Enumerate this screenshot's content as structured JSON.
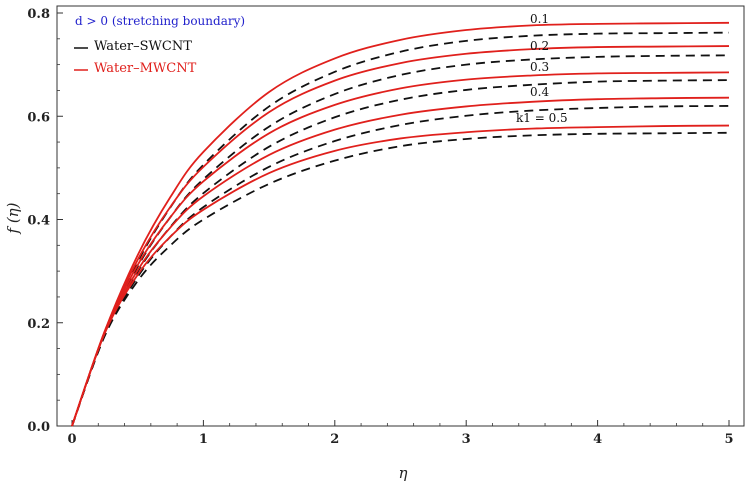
{
  "chart_data": {
    "type": "line",
    "xlabel": "η",
    "ylabel": "f (η)",
    "xlim": [
      0,
      5
    ],
    "ylim": [
      0,
      0.8
    ],
    "xticks": [
      "0",
      "1",
      "2",
      "3",
      "4",
      "5"
    ],
    "yticks": [
      "0.0",
      "0.2",
      "0.4",
      "0.6",
      "0.8"
    ],
    "grid": false,
    "legend_position": "top-left",
    "legend_note": "d > 0 (stretching boundary)",
    "legend": [
      {
        "label": "Water–SWCNT",
        "color": "#111111",
        "style": "dashed"
      },
      {
        "label": "Water–MWCNT",
        "color": "#e0201c",
        "style": "solid"
      }
    ],
    "curve_labels": [
      "0.1",
      "0.2",
      "0.3",
      "0.4",
      "k1 = 0.5"
    ],
    "series": [
      {
        "name": "Water–MWCNT, k1 = 0.1",
        "k1": 0.1,
        "fluid": "MWCNT",
        "x": [
          0,
          0.25,
          0.5,
          0.75,
          1,
          1.5,
          2,
          2.5,
          3,
          3.5,
          4,
          4.5,
          5
        ],
        "y": [
          0,
          0.184,
          0.331,
          0.444,
          0.531,
          0.647,
          0.712,
          0.748,
          0.767,
          0.776,
          0.779,
          0.78,
          0.781
        ]
      },
      {
        "name": "Water–MWCNT, k1 = 0.2",
        "k1": 0.2,
        "fluid": "MWCNT",
        "x": [
          0,
          0.25,
          0.5,
          0.75,
          1,
          1.5,
          2,
          2.5,
          3,
          3.5,
          4,
          4.5,
          5
        ],
        "y": [
          0,
          0.184,
          0.322,
          0.425,
          0.502,
          0.608,
          0.669,
          0.703,
          0.721,
          0.73,
          0.734,
          0.735,
          0.736
        ]
      },
      {
        "name": "Water–MWCNT, k1 = 0.3",
        "k1": 0.3,
        "fluid": "MWCNT",
        "x": [
          0,
          0.25,
          0.5,
          0.75,
          1,
          1.5,
          2,
          2.5,
          3,
          3.5,
          4,
          4.5,
          5
        ],
        "y": [
          0,
          0.182,
          0.312,
          0.405,
          0.474,
          0.567,
          0.622,
          0.654,
          0.671,
          0.679,
          0.683,
          0.684,
          0.685
        ]
      },
      {
        "name": "Water–MWCNT, k1 = 0.4",
        "k1": 0.4,
        "fluid": "MWCNT",
        "x": [
          0,
          0.25,
          0.5,
          0.75,
          1,
          1.5,
          2,
          2.5,
          3,
          3.5,
          4,
          4.5,
          5
        ],
        "y": [
          0,
          0.181,
          0.302,
          0.385,
          0.445,
          0.525,
          0.574,
          0.603,
          0.619,
          0.628,
          0.633,
          0.635,
          0.636
        ]
      },
      {
        "name": "Water–MWCNT, k1 = 0.5",
        "k1": 0.5,
        "fluid": "MWCNT",
        "x": [
          0,
          0.25,
          0.5,
          0.75,
          1,
          1.5,
          2,
          2.5,
          3,
          3.5,
          4,
          4.5,
          5
        ],
        "y": [
          0,
          0.18,
          0.293,
          0.367,
          0.419,
          0.49,
          0.533,
          0.557,
          0.569,
          0.576,
          0.579,
          0.581,
          0.582
        ]
      },
      {
        "name": "Water–SWCNT, k1 = 0.1",
        "k1": 0.1,
        "fluid": "SWCNT",
        "x": [
          0,
          0.25,
          0.5,
          0.75,
          1,
          1.5,
          2,
          2.5,
          3,
          3.5,
          4,
          4.5,
          5
        ],
        "y": [
          0,
          0.179,
          0.318,
          0.424,
          0.506,
          0.619,
          0.686,
          0.725,
          0.746,
          0.756,
          0.76,
          0.761,
          0.762
        ]
      },
      {
        "name": "Water–SWCNT, k1 = 0.2",
        "k1": 0.2,
        "fluid": "SWCNT",
        "x": [
          0,
          0.25,
          0.5,
          0.75,
          1,
          1.5,
          2,
          2.5,
          3,
          3.5,
          4,
          4.5,
          5
        ],
        "y": [
          0,
          0.179,
          0.309,
          0.405,
          0.478,
          0.58,
          0.643,
          0.68,
          0.7,
          0.71,
          0.715,
          0.717,
          0.718
        ]
      },
      {
        "name": "Water–SWCNT, k1 = 0.3",
        "k1": 0.3,
        "fluid": "SWCNT",
        "x": [
          0,
          0.25,
          0.5,
          0.75,
          1,
          1.5,
          2,
          2.5,
          3,
          3.5,
          4,
          4.5,
          5
        ],
        "y": [
          0,
          0.177,
          0.299,
          0.386,
          0.451,
          0.541,
          0.598,
          0.632,
          0.651,
          0.661,
          0.667,
          0.669,
          0.67
        ]
      },
      {
        "name": "Water–SWCNT, k1 = 0.4",
        "k1": 0.4,
        "fluid": "SWCNT",
        "x": [
          0,
          0.25,
          0.5,
          0.75,
          1,
          1.5,
          2,
          2.5,
          3,
          3.5,
          4,
          4.5,
          5
        ],
        "y": [
          0,
          0.176,
          0.289,
          0.367,
          0.424,
          0.502,
          0.552,
          0.583,
          0.601,
          0.611,
          0.616,
          0.619,
          0.62
        ]
      },
      {
        "name": "Water–SWCNT, k1 = 0.5",
        "k1": 0.5,
        "fluid": "SWCNT",
        "x": [
          0,
          0.25,
          0.5,
          0.75,
          1,
          1.5,
          2,
          2.5,
          3,
          3.5,
          4,
          4.5,
          5
        ],
        "y": [
          0,
          0.175,
          0.281,
          0.35,
          0.4,
          0.469,
          0.514,
          0.542,
          0.556,
          0.563,
          0.566,
          0.567,
          0.568
        ]
      }
    ],
    "colors": {
      "mwcnt": "#e0201c",
      "swcnt": "#111111",
      "axis": "#333333",
      "note": "#2222cc"
    }
  }
}
